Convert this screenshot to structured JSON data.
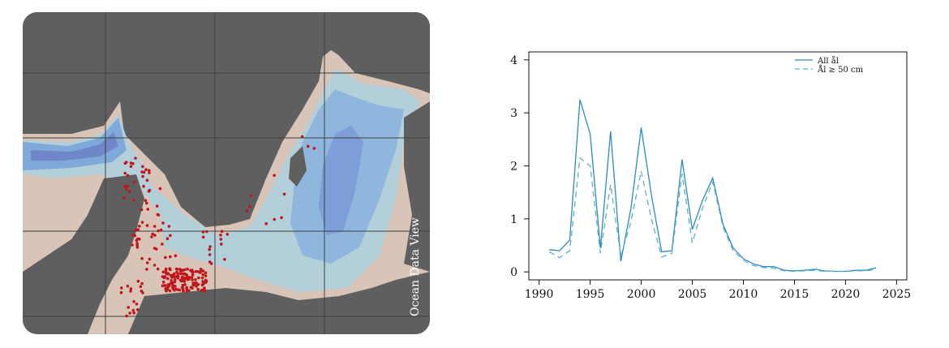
{
  "map": {
    "watermark": "Ocean Data View",
    "colors": {
      "land": "#5f5f5f",
      "shallow_sea": "#d9c5b8",
      "mid_sea": "#b3d0da",
      "deep_sea": "#7fa9d9",
      "deepest": "#6f86c8",
      "grid": "#3f3f3f",
      "points": "#c0151a"
    }
  },
  "chart_data": {
    "type": "line",
    "title": "",
    "xlabel": "",
    "ylabel": "",
    "xlim": [
      1989,
      2026
    ],
    "ylim": [
      -0.15,
      4.15
    ],
    "x_ticks": [
      "1990",
      "1995",
      "2000",
      "2005",
      "2010",
      "2015",
      "2020",
      "2025"
    ],
    "y_ticks": [
      "0",
      "1",
      "2",
      "3",
      "4"
    ],
    "legend_position": "top-right",
    "grid": false,
    "series": [
      {
        "name": "All ål",
        "style": "solid",
        "color": "#2b8cbe",
        "x": [
          1991,
          1992,
          1993,
          1994,
          1995,
          1996,
          1997,
          1998,
          1999,
          2000,
          2001,
          2002,
          2003,
          2004,
          2005,
          2006,
          2007,
          2008,
          2009,
          2010,
          2011,
          2012,
          2013,
          2014,
          2015,
          2016,
          2017,
          2018,
          2019,
          2020,
          2021,
          2022,
          2023
        ],
        "y": [
          0.42,
          0.4,
          0.6,
          3.25,
          2.6,
          0.45,
          2.65,
          0.2,
          1.2,
          2.72,
          1.45,
          0.38,
          0.4,
          2.12,
          0.8,
          1.35,
          1.77,
          0.9,
          0.45,
          0.25,
          0.15,
          0.1,
          0.1,
          0.03,
          0.02,
          0.03,
          0.05,
          0.02,
          0.01,
          0.01,
          0.03,
          0.03,
          0.08
        ]
      },
      {
        "name": "Ål ≥ 50 cm",
        "style": "dashed",
        "color": "#5fb0c8",
        "x": [
          1991,
          1992,
          1993,
          1994,
          1995,
          1996,
          1997,
          1998,
          1999,
          2000,
          2001,
          2002,
          2003,
          2004,
          2005,
          2006,
          2007,
          2008,
          2009,
          2010,
          2011,
          2012,
          2013,
          2014,
          2015,
          2016,
          2017,
          2018,
          2019,
          2020,
          2021,
          2022,
          2023
        ],
        "y": [
          0.38,
          0.27,
          0.4,
          2.15,
          2.0,
          0.35,
          1.65,
          0.3,
          0.95,
          1.9,
          1.0,
          0.28,
          0.35,
          1.85,
          0.55,
          1.2,
          1.7,
          0.85,
          0.4,
          0.22,
          0.12,
          0.08,
          0.07,
          0.02,
          0.01,
          0.02,
          0.03,
          0.01,
          0.01,
          0.01,
          0.02,
          0.02,
          0.05
        ]
      }
    ]
  }
}
